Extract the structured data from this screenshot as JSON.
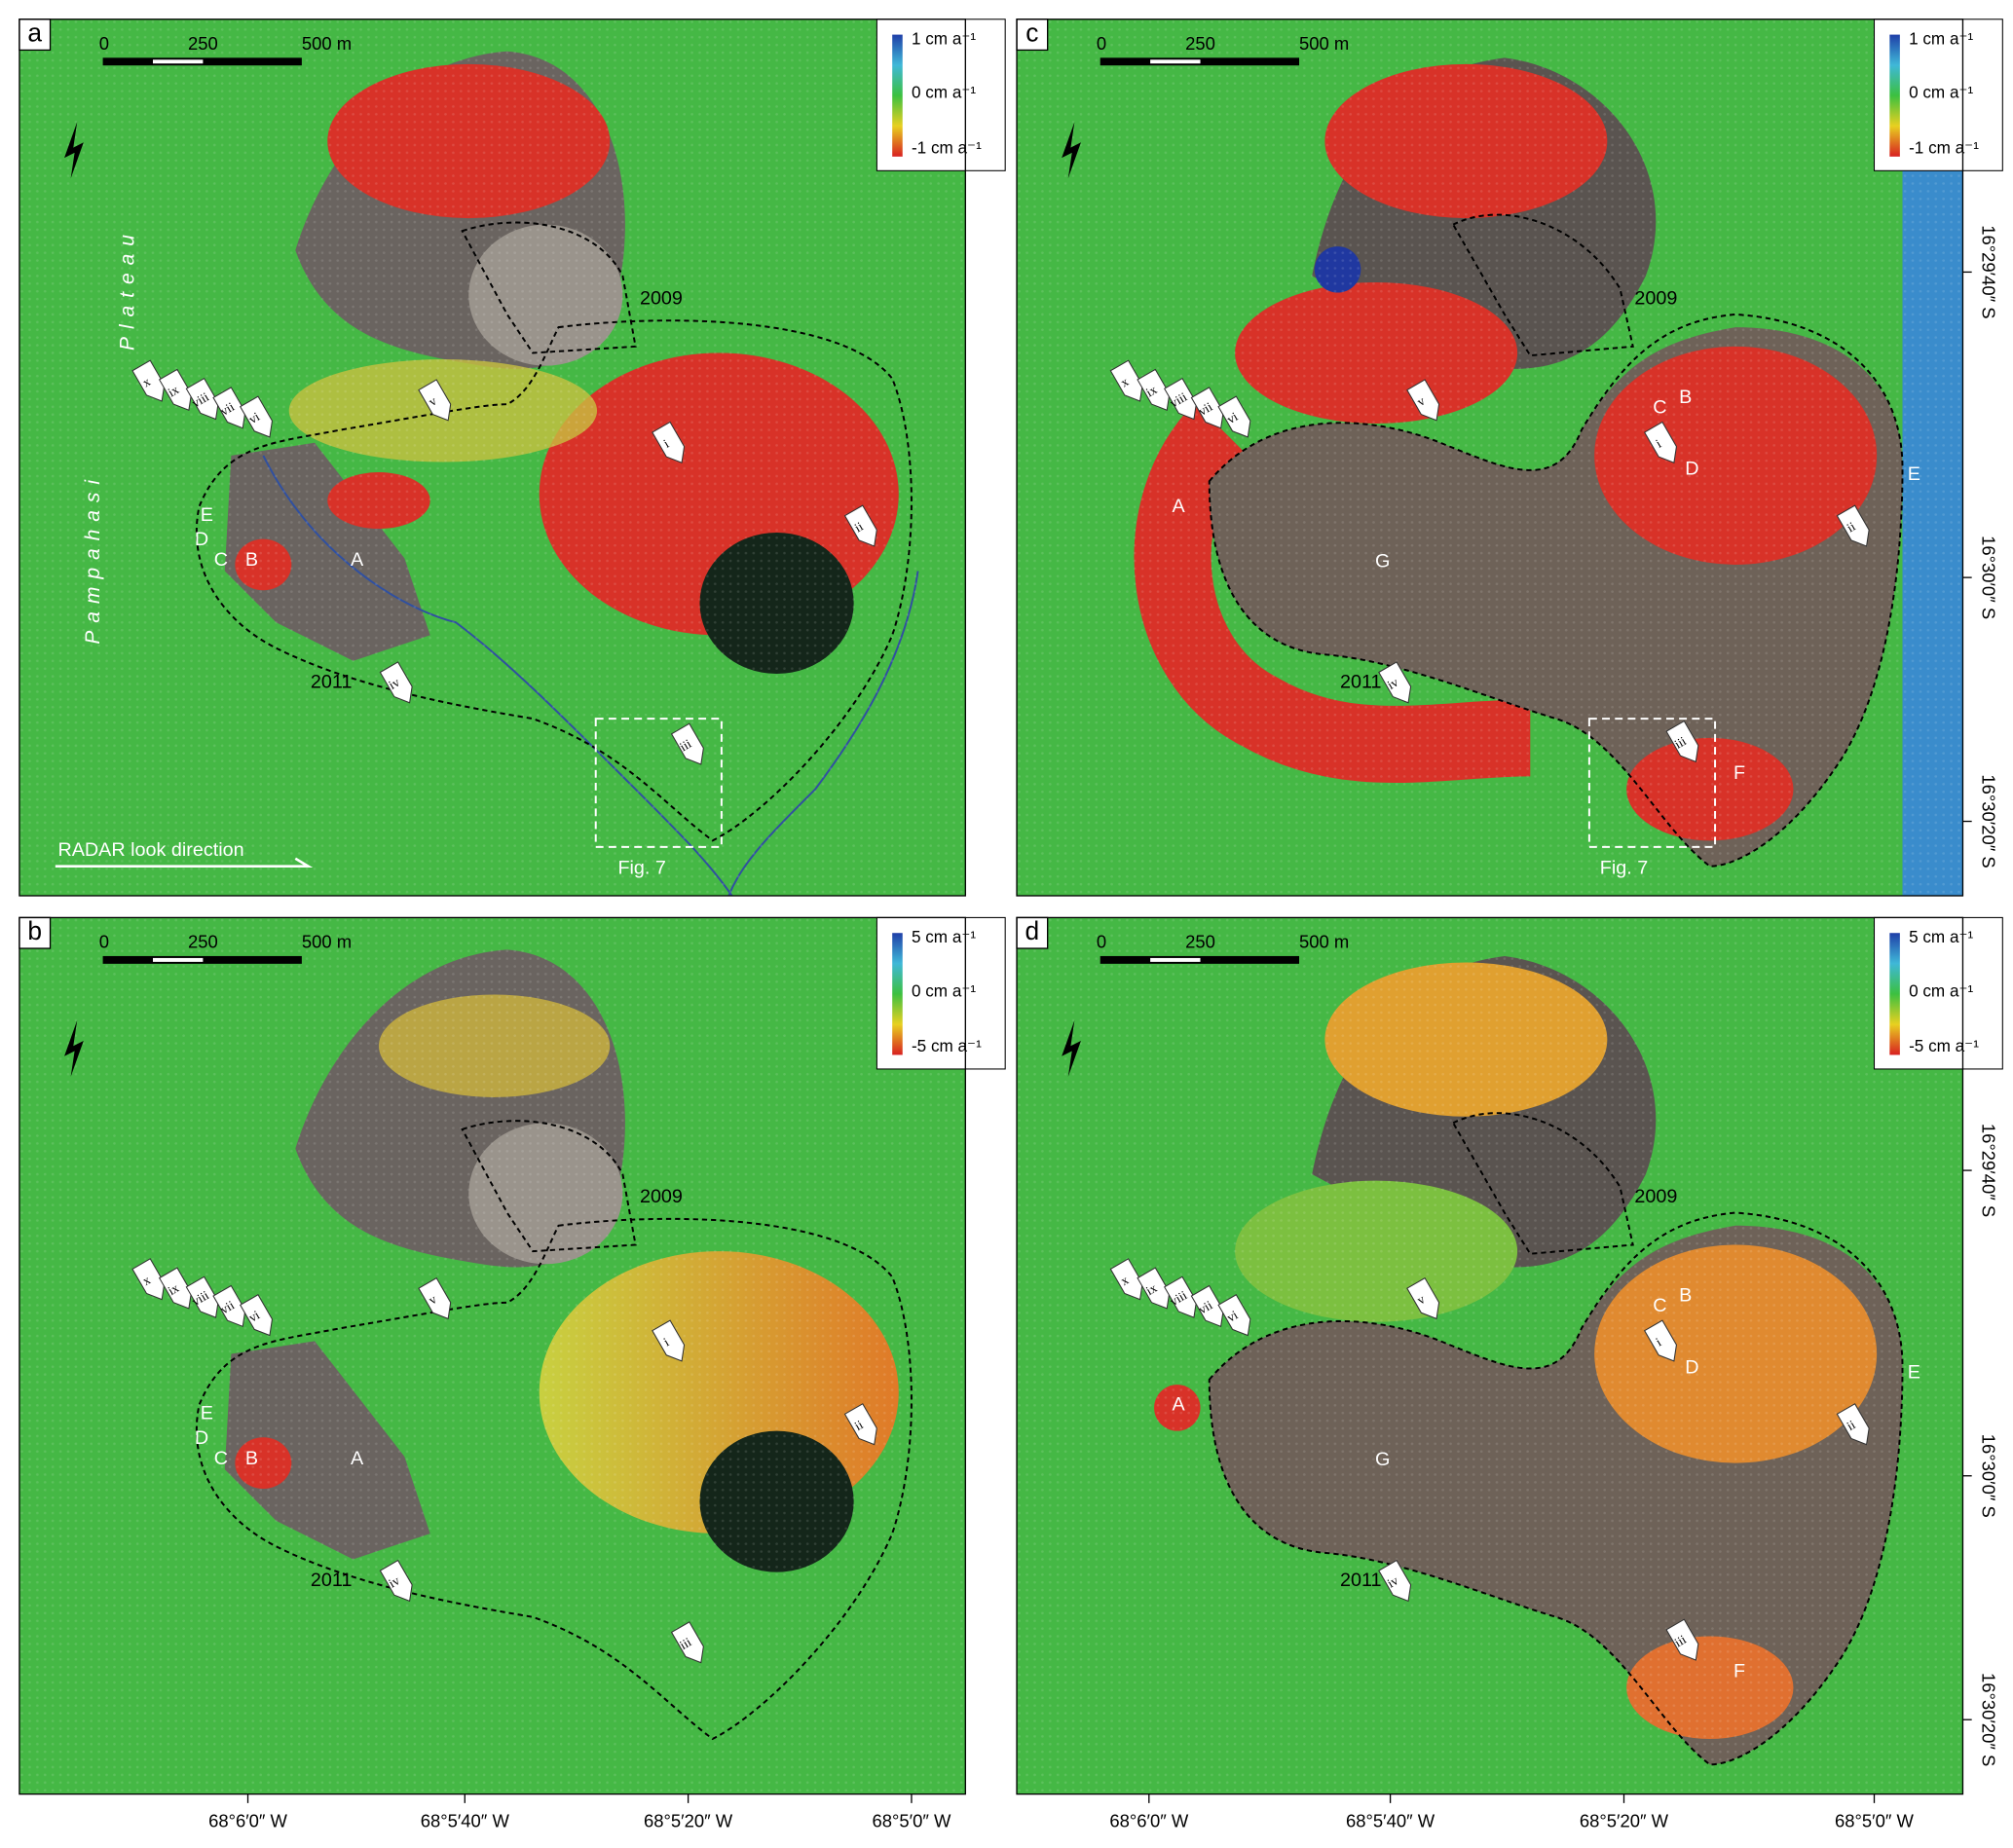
{
  "panels": [
    {
      "label": "a",
      "scale_bar": [
        "0",
        "250",
        "500 m"
      ],
      "legend": [
        "1 cm a⁻¹",
        "0 cm a⁻¹",
        "-1 cm a⁻¹"
      ],
      "annotations": [
        "x",
        "ix",
        "viii",
        "vii",
        "vi",
        "v",
        "i",
        "ii",
        "iii",
        "iv",
        "A",
        "B",
        "C",
        "D",
        "E",
        "2009",
        "2011",
        "Fig. 7"
      ],
      "place_names": [
        "Plateau",
        "Pampahasi",
        "RADAR look direction"
      ]
    },
    {
      "label": "b",
      "scale_bar": [
        "0",
        "250",
        "500 m"
      ],
      "legend": [
        "5 cm a⁻¹",
        "0 cm a⁻¹",
        "-5 cm a⁻¹"
      ],
      "annotations": [
        "x",
        "ix",
        "viii",
        "vii",
        "vi",
        "v",
        "i",
        "ii",
        "iii",
        "iv",
        "A",
        "B",
        "C",
        "D",
        "E",
        "2009",
        "2011"
      ]
    },
    {
      "label": "c",
      "scale_bar": [
        "0",
        "250",
        "500 m"
      ],
      "legend": [
        "1 cm a⁻¹",
        "0 cm a⁻¹",
        "-1 cm a⁻¹"
      ],
      "annotations": [
        "x",
        "ix",
        "viii",
        "vii",
        "vi",
        "v",
        "i",
        "ii",
        "iii",
        "iv",
        "A",
        "B",
        "C",
        "D",
        "E",
        "F",
        "G",
        "2009",
        "2011",
        "Fig. 7"
      ]
    },
    {
      "label": "d",
      "scale_bar": [
        "0",
        "250",
        "500 m"
      ],
      "legend": [
        "5 cm a⁻¹",
        "0 cm a⁻¹",
        "-5 cm a⁻¹"
      ],
      "annotations": [
        "x",
        "ix",
        "viii",
        "vii",
        "vi",
        "v",
        "i",
        "ii",
        "iii",
        "iv",
        "A",
        "B",
        "C",
        "D",
        "E",
        "F",
        "G",
        "2009",
        "2011"
      ]
    }
  ],
  "longitude_labels": [
    "68°6′0″ W",
    "68°5′40″ W",
    "68°5′20″ W",
    "68°5′0″ W"
  ],
  "latitude_labels": [
    "16°29′40″ S",
    "16°30′0″ S",
    "16°30′20″ S"
  ]
}
